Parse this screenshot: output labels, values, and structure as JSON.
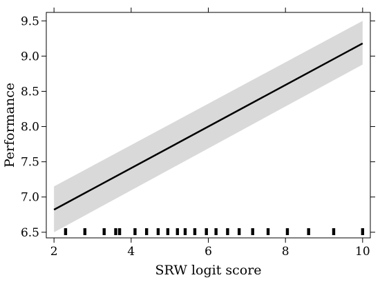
{
  "chart_data": {
    "type": "line",
    "title": "",
    "xlabel": "SRW logit score",
    "ylabel": "Performance",
    "xlim": [
      1.8,
      10.2
    ],
    "ylim": [
      6.42,
      9.62
    ],
    "xticks": [
      2,
      4,
      6,
      8,
      10
    ],
    "xtick_labels": [
      "2",
      "4",
      "6",
      "8",
      "10"
    ],
    "xticks_top": [
      2,
      4,
      6,
      8,
      10
    ],
    "yticks": [
      6.5,
      7.0,
      7.5,
      8.0,
      8.5,
      9.0,
      9.5
    ],
    "ytick_labels": [
      "6.5",
      "7.0",
      "7.5",
      "8.0",
      "8.5",
      "9.0",
      "9.5"
    ],
    "grid": false,
    "legend": "none",
    "colors": {
      "line": "#000000",
      "band": "#d9d9d9",
      "rug": "#000000"
    },
    "series": [
      {
        "x": [
          2,
          10
        ],
        "y": [
          6.82,
          9.18
        ],
        "ci_lower": [
          6.5,
          8.88
        ],
        "ci_upper": [
          7.15,
          9.5
        ]
      }
    ],
    "rug_x": [
      2.3,
      2.8,
      3.3,
      3.6,
      3.7,
      4.1,
      4.4,
      4.7,
      4.95,
      5.2,
      5.4,
      5.65,
      5.95,
      6.2,
      6.5,
      6.8,
      7.15,
      7.55,
      8.05,
      8.6,
      9.25,
      10.0
    ]
  }
}
